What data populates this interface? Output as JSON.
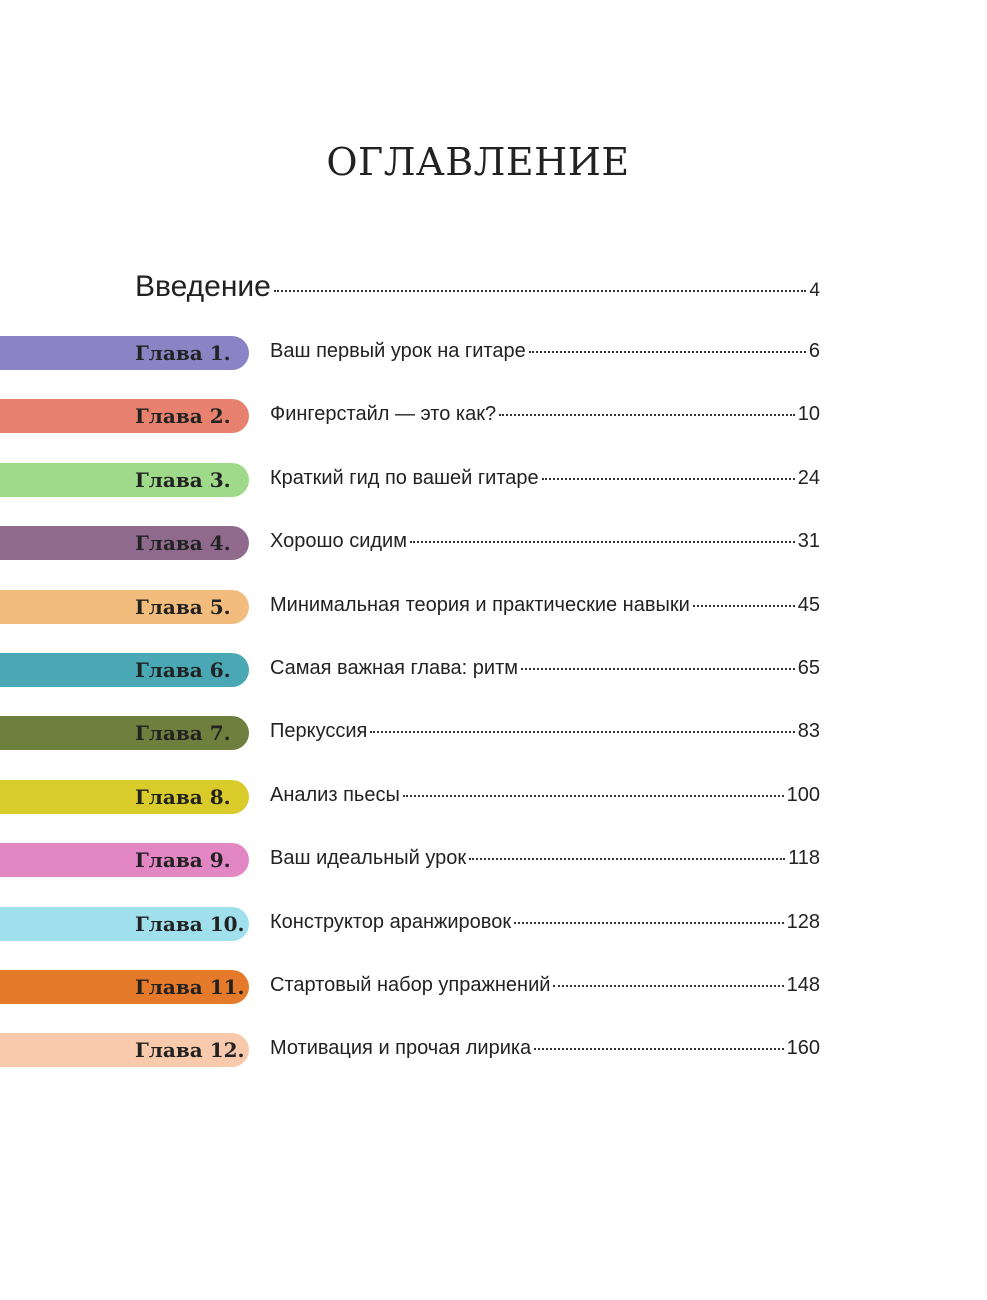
{
  "title": "ОГЛАВЛЕНИЕ",
  "intro": {
    "title": "Введение",
    "page": 4
  },
  "chapters": [
    {
      "label": "Глава 1.",
      "title": "Ваш первый урок на гитаре",
      "page": 6,
      "color": "#8b84c4"
    },
    {
      "label": "Глава 2.",
      "title": "Фингерстайл — это как?",
      "page": 10,
      "color": "#e8826e"
    },
    {
      "label": "Глава 3.",
      "title": "Краткий гид по вашей гитаре",
      "page": 24,
      "color": "#9fd98a"
    },
    {
      "label": "Глава 4.",
      "title": "Хорошо сидим",
      "page": 31,
      "color": "#8f6a8d"
    },
    {
      "label": "Глава 5.",
      "title": "Минимальная теория и практические навыки",
      "page": 45,
      "color": "#f2bd7c"
    },
    {
      "label": "Глава 6.",
      "title": "Самая важная глава: ритм",
      "page": 65,
      "color": "#4aa8b5"
    },
    {
      "label": "Глава 7.",
      "title": "Перкуссия",
      "page": 83,
      "color": "#6f7f3d"
    },
    {
      "label": "Глава 8.",
      "title": "Анализ пьесы",
      "page": 100,
      "color": "#d9cc2a"
    },
    {
      "label": "Глава 9.",
      "title": "Ваш идеальный урок",
      "page": 118,
      "color": "#e286c4"
    },
    {
      "label": "Глава 10.",
      "title": "Конструктор аранжировок",
      "page": 128,
      "color": "#a0e0ec"
    },
    {
      "label": "Глава 11.",
      "title": "Стартовый набор упражнений",
      "page": 148,
      "color": "#e57b2a"
    },
    {
      "label": "Глава 12.",
      "title": "Мотивация и прочая лирика",
      "page": 160,
      "color": "#f8c9aa"
    }
  ]
}
